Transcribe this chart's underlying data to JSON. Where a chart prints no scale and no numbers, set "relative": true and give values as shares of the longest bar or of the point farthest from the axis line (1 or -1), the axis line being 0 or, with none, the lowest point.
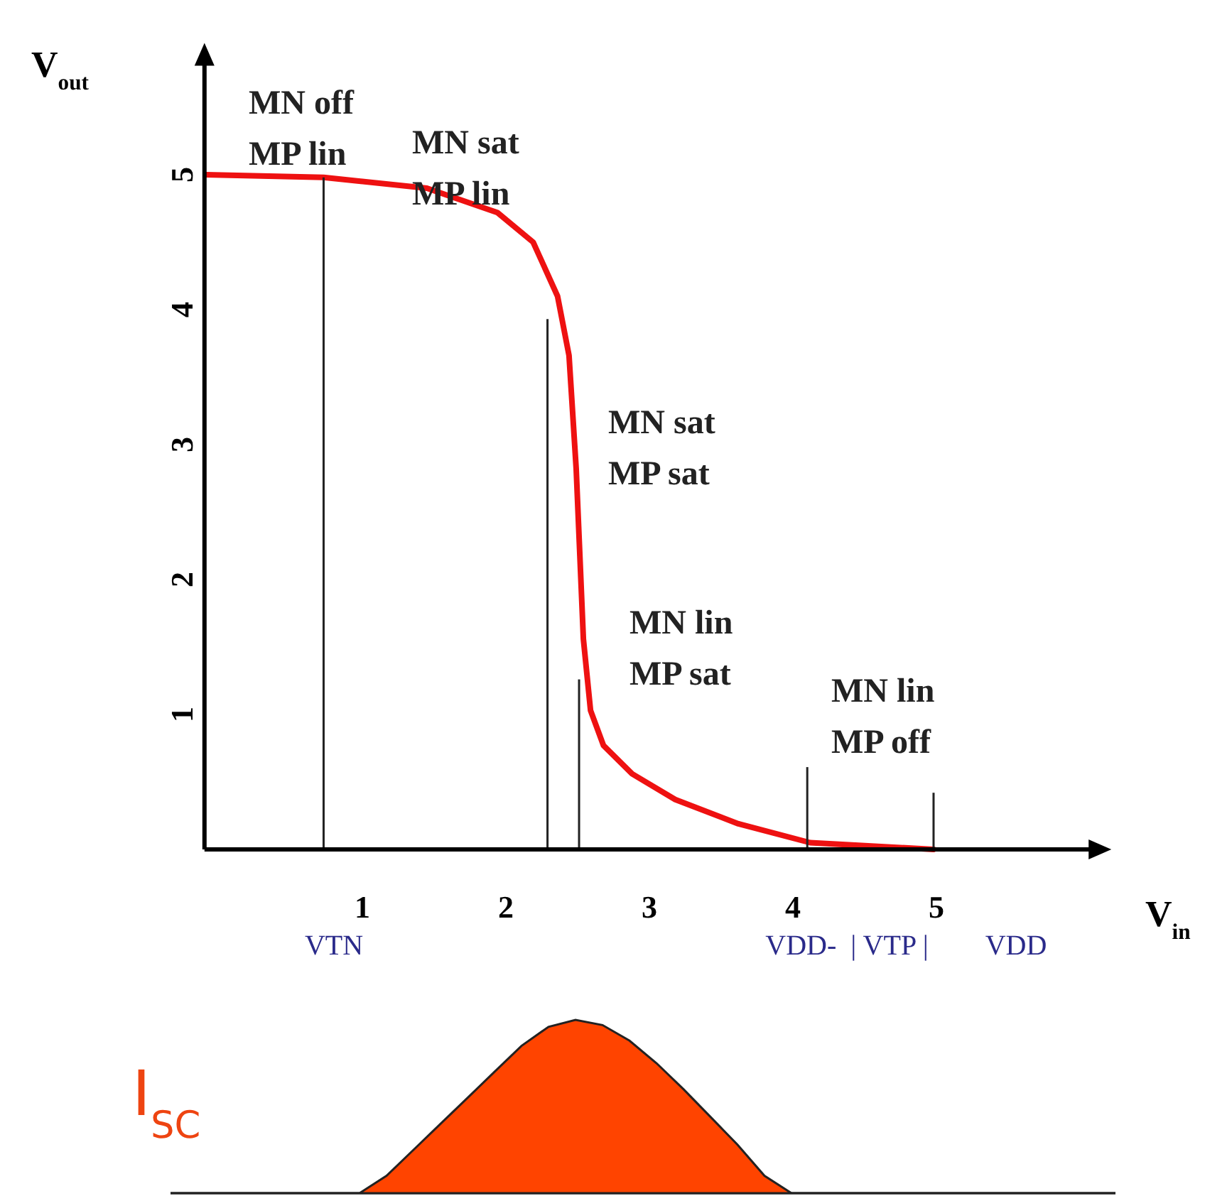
{
  "chart_data": [
    {
      "type": "line",
      "xlabel": "V$_{in}$",
      "ylabel": "V$_{out}$",
      "xlim": [
        -0.1,
        6.1
      ],
      "ylim": [
        0,
        5.85
      ],
      "xticks": [
        1,
        2,
        3,
        4,
        5
      ],
      "yticks": [
        1,
        2,
        3,
        4,
        5
      ],
      "grid": false,
      "marker": "none",
      "line_style": "solid",
      "series": [
        {
          "color": "#ee1111",
          "x": [
            -0.09,
            0.73,
            1.45,
            1.94,
            2.19,
            2.36,
            2.44,
            2.49,
            2.54,
            2.59,
            2.68,
            2.88,
            3.18,
            3.62,
            4.12,
            4.98
          ],
          "values": [
            5.0,
            4.98,
            4.9,
            4.72,
            4.5,
            4.1,
            3.66,
            2.82,
            1.56,
            1.03,
            0.77,
            0.56,
            0.37,
            0.19,
            0.05,
            0
          ]
        },
        {
          "type": "bar",
          "color": "#222222",
          "x": [
            0.73,
            2.29,
            2.51,
            4.1,
            4.98
          ],
          "values": [
            4.98,
            3.93,
            1.26,
            0.61,
            0.42
          ]
        }
      ],
      "annotations": [
        "MN off\nMP lin",
        "MN sat\nMP lin",
        "MN sat\nMP sat",
        "MN lin\nMP sat",
        "MN lin\nMP off",
        "VTN",
        "VDD-  | VTP |",
        "VDD"
      ]
    },
    {
      "type": "area",
      "relative": true,
      "ylabel": "I$_{SC}$",
      "categories": [
        null,
        null,
        null,
        null,
        null,
        null,
        null,
        null,
        null,
        null,
        null,
        null,
        null,
        null,
        null,
        null,
        null,
        null,
        null,
        null,
        null,
        null,
        null,
        null,
        null,
        null,
        null,
        null,
        null,
        null,
        null,
        null,
        null,
        null,
        null,
        null
      ],
      "series": [
        {
          "color": "#ff4400",
          "values": [
            0,
            0,
            0,
            0,
            0,
            0,
            0,
            0,
            0.1,
            0.25,
            0.4,
            0.55,
            0.7,
            0.85,
            0.96,
            1,
            0.97,
            0.88,
            0.75,
            0.6,
            0.44,
            0.28,
            0.1,
            0,
            0,
            0,
            0,
            0,
            0,
            0,
            0,
            0,
            0,
            0,
            0,
            0
          ]
        }
      ]
    }
  ]
}
